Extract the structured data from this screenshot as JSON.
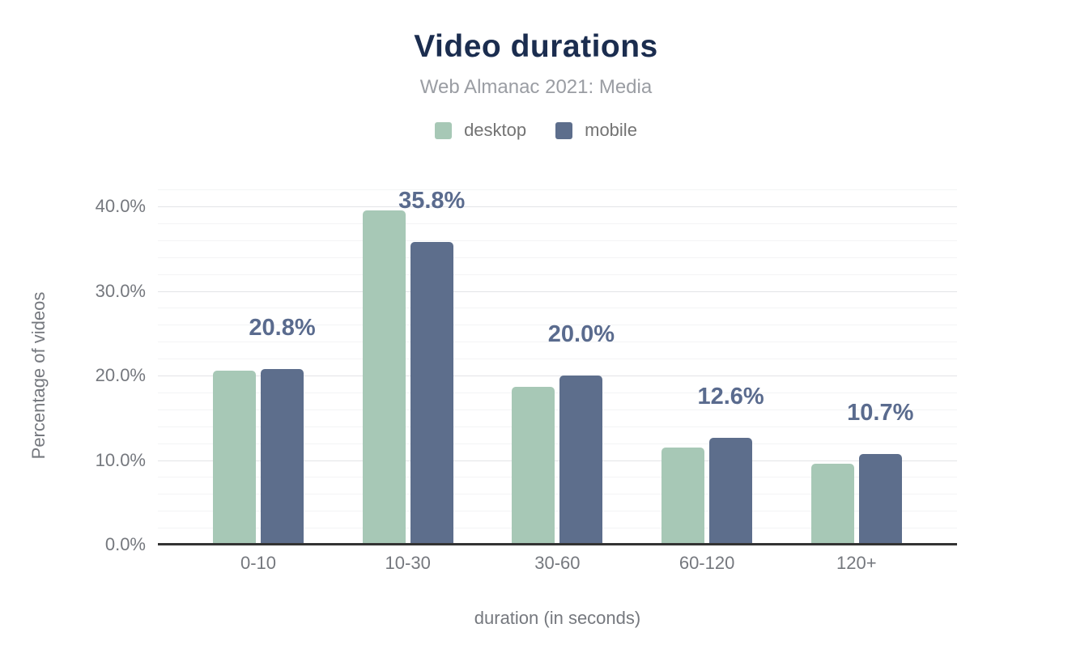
{
  "header": {
    "title": "Video durations",
    "subtitle": "Web Almanac 2021: Media"
  },
  "chart_data": {
    "type": "bar",
    "title": "Video durations",
    "subtitle": "Web Almanac 2021: Media",
    "categories": [
      "0-10",
      "10-30",
      "30-60",
      "60-120",
      "120+"
    ],
    "series": [
      {
        "name": "desktop",
        "color": "#a7c8b6",
        "values": [
          20.6,
          39.5,
          18.7,
          11.5,
          9.6
        ]
      },
      {
        "name": "mobile",
        "color": "#5d6e8c",
        "values": [
          20.8,
          35.8,
          20.0,
          12.6,
          10.7
        ]
      }
    ],
    "data_labels": {
      "labeled_series": "mobile",
      "labels": [
        "20.8%",
        "35.8%",
        "20.0%",
        "12.6%",
        "10.7%"
      ],
      "color": "#5a6b8e"
    },
    "xlabel": "duration (in seconds)",
    "ylabel": "Percentage of videos",
    "y_ticks": [
      {
        "value": 0,
        "label": "0.0%"
      },
      {
        "value": 10,
        "label": "10.0%"
      },
      {
        "value": 20,
        "label": "20.0%"
      },
      {
        "value": 30,
        "label": "30.0%"
      },
      {
        "value": 40,
        "label": "40.0%"
      }
    ],
    "ylim": [
      0,
      42
    ],
    "grid": {
      "major_step": 10,
      "minor_step": 2,
      "grid_on": true
    },
    "legend_position": "top",
    "colors": {
      "title": "#1b2d4f",
      "subtitle": "#9a9da3",
      "axis_text": "#75787e",
      "baseline": "#333333",
      "major_grid": "#e3e4e7",
      "minor_grid": "#f3f4f5"
    }
  }
}
